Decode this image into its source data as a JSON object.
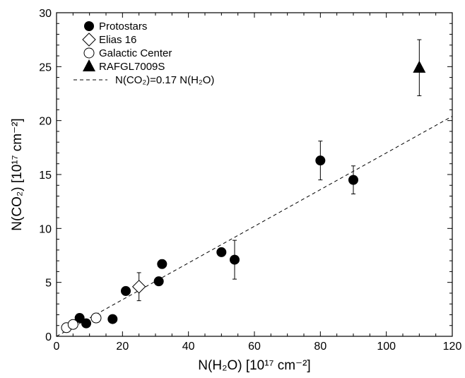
{
  "chart_data": {
    "type": "scatter",
    "xlabel": "N(H₂O) [10¹⁷ cm⁻²]",
    "ylabel": "N(CO₂) [10¹⁷ cm⁻²]",
    "xlim": [
      0,
      120
    ],
    "ylim": [
      0,
      30
    ],
    "x_ticks": [
      "0",
      "20",
      "40",
      "60",
      "80",
      "100",
      "120"
    ],
    "y_ticks": [
      "0",
      "5",
      "10",
      "15",
      "20",
      "25",
      "30"
    ],
    "grid": false,
    "legend_position": "top-left",
    "series": [
      {
        "name": "Protostars",
        "marker": "filled-circle",
        "points": [
          {
            "x": 7,
            "y": 1.7
          },
          {
            "x": 9,
            "y": 1.2
          },
          {
            "x": 17,
            "y": 1.6
          },
          {
            "x": 21,
            "y": 4.2
          },
          {
            "x": 31,
            "y": 5.1
          },
          {
            "x": 32,
            "y": 6.7,
            "err": 0.4
          },
          {
            "x": 50,
            "y": 7.8
          },
          {
            "x": 54,
            "y": 7.1,
            "err": 1.8
          },
          {
            "x": 80,
            "y": 16.3,
            "err": 1.8
          },
          {
            "x": 90,
            "y": 14.5,
            "err": 1.3
          }
        ]
      },
      {
        "name": "Elias 16",
        "marker": "open-diamond",
        "points": [
          {
            "x": 25,
            "y": 4.6,
            "err": 1.3
          }
        ]
      },
      {
        "name": "Galactic Center",
        "marker": "open-circle",
        "points": [
          {
            "x": 3,
            "y": 0.8,
            "err": 0.3
          },
          {
            "x": 5,
            "y": 1.1,
            "err": 0.3
          },
          {
            "x": 12,
            "y": 1.7,
            "err": 0.3
          }
        ]
      },
      {
        "name": "RAFGL7009S",
        "marker": "filled-triangle",
        "points": [
          {
            "x": 110,
            "y": 24.9,
            "err": 2.6
          }
        ]
      }
    ],
    "fit_line": {
      "label": "N(CO₂)=0.17 N(H₂O)",
      "slope": 0.17,
      "style": "dashed"
    }
  }
}
